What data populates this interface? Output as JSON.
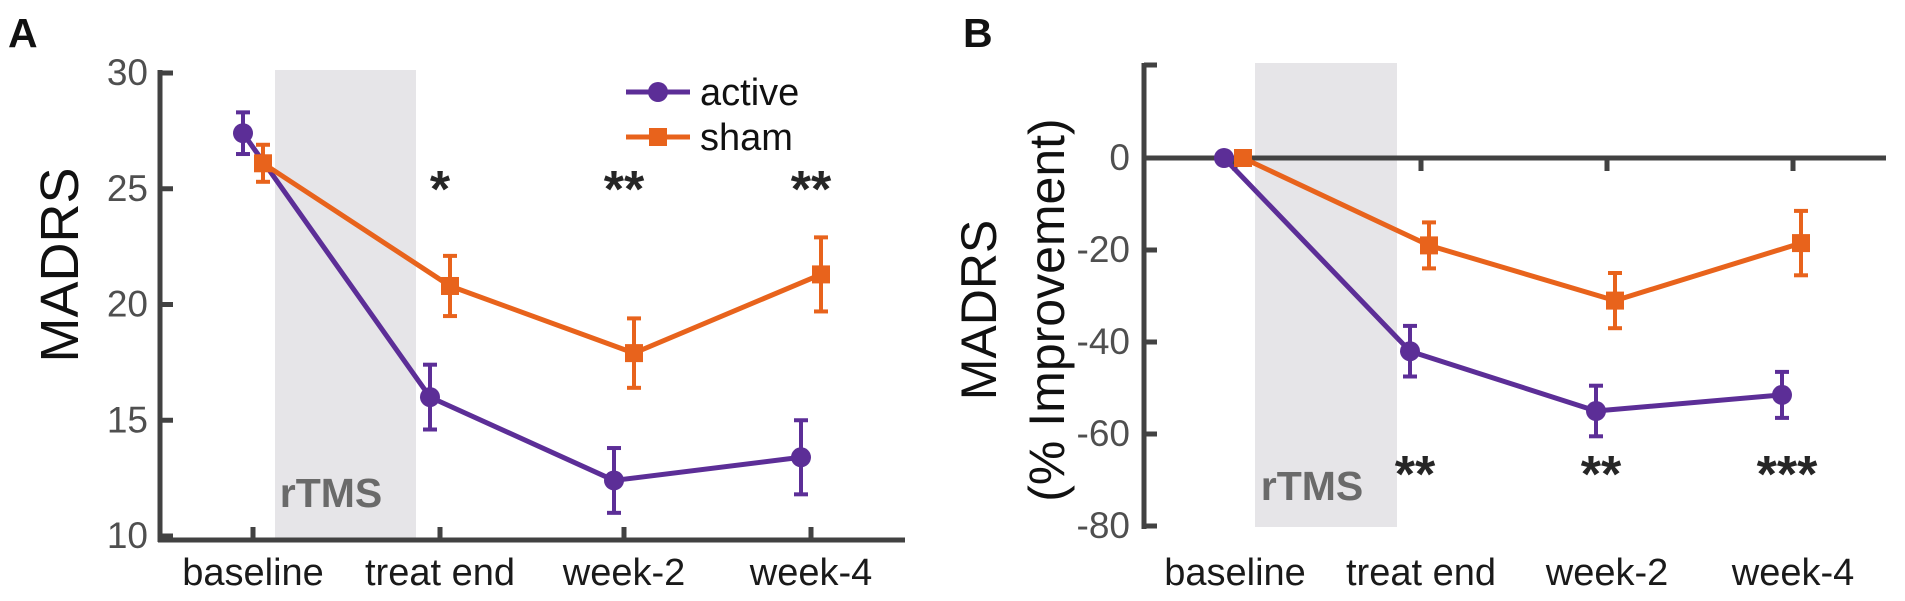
{
  "figure": {
    "background": "#FFFFFF",
    "description_visible_panels": [
      "A",
      "B"
    ]
  },
  "colors": {
    "active": "#5C2E97",
    "sham": "#E8631C",
    "shaded_band": "#E6E5E8",
    "axis": "#424242",
    "tick_label": "#4F4F4F",
    "band_label": "#6A6A6A",
    "text": "#1A1A1A",
    "significance": "#262626"
  },
  "chart_data": [
    {
      "type": "line",
      "panel_label": "A",
      "categories": [
        "baseline",
        "treat end",
        "week-2",
        "week-4"
      ],
      "xlabel": "",
      "ylabel": "MADRS",
      "ylim": [
        10,
        30
      ],
      "yticks": [
        30,
        25,
        20,
        15,
        10
      ],
      "grid": false,
      "legend": [
        "active",
        "sham"
      ],
      "legend_position": "top-right-inside",
      "shaded_region": {
        "label": "rTMS",
        "from_category": "baseline",
        "to_category": "treat end"
      },
      "series": [
        {
          "name": "active",
          "marker": "circle",
          "color": "#5C2E97",
          "values": [
            27.4,
            16.0,
            12.4,
            13.4
          ],
          "errors": [
            0.9,
            1.4,
            1.4,
            1.6
          ]
        },
        {
          "name": "sham",
          "marker": "square",
          "color": "#E8631C",
          "values": [
            26.1,
            20.8,
            17.9,
            21.3
          ],
          "errors": [
            0.8,
            1.3,
            1.5,
            1.6
          ]
        }
      ],
      "significance": [
        {
          "category": "treat end",
          "text": "*"
        },
        {
          "category": "week-2",
          "text": "**"
        },
        {
          "category": "week-4",
          "text": "**"
        }
      ]
    },
    {
      "type": "line",
      "panel_label": "B",
      "categories": [
        "baseline",
        "treat end",
        "week-2",
        "week-4"
      ],
      "xlabel": "",
      "ylabel_lines": [
        "MADRS",
        "(% Improvement)"
      ],
      "ylim": [
        -80,
        20
      ],
      "yticks": [
        0,
        -20,
        -40,
        -60,
        -80
      ],
      "zero_line": true,
      "grid": false,
      "legend": null,
      "shaded_region": {
        "label": "rTMS",
        "from_category": "baseline",
        "to_category": "treat end"
      },
      "series": [
        {
          "name": "active",
          "marker": "circle",
          "color": "#5C2E97",
          "values": [
            0,
            -42,
            -55,
            -51.5
          ],
          "errors": [
            0,
            5.5,
            5.5,
            5
          ]
        },
        {
          "name": "sham",
          "marker": "square",
          "color": "#E8631C",
          "values": [
            0,
            -19,
            -31,
            -18.5
          ],
          "errors": [
            0,
            5,
            6,
            7
          ]
        }
      ],
      "significance": [
        {
          "category": "treat end",
          "text": "**"
        },
        {
          "category": "week-2",
          "text": "**"
        },
        {
          "category": "week-4",
          "text": "***"
        }
      ]
    }
  ]
}
